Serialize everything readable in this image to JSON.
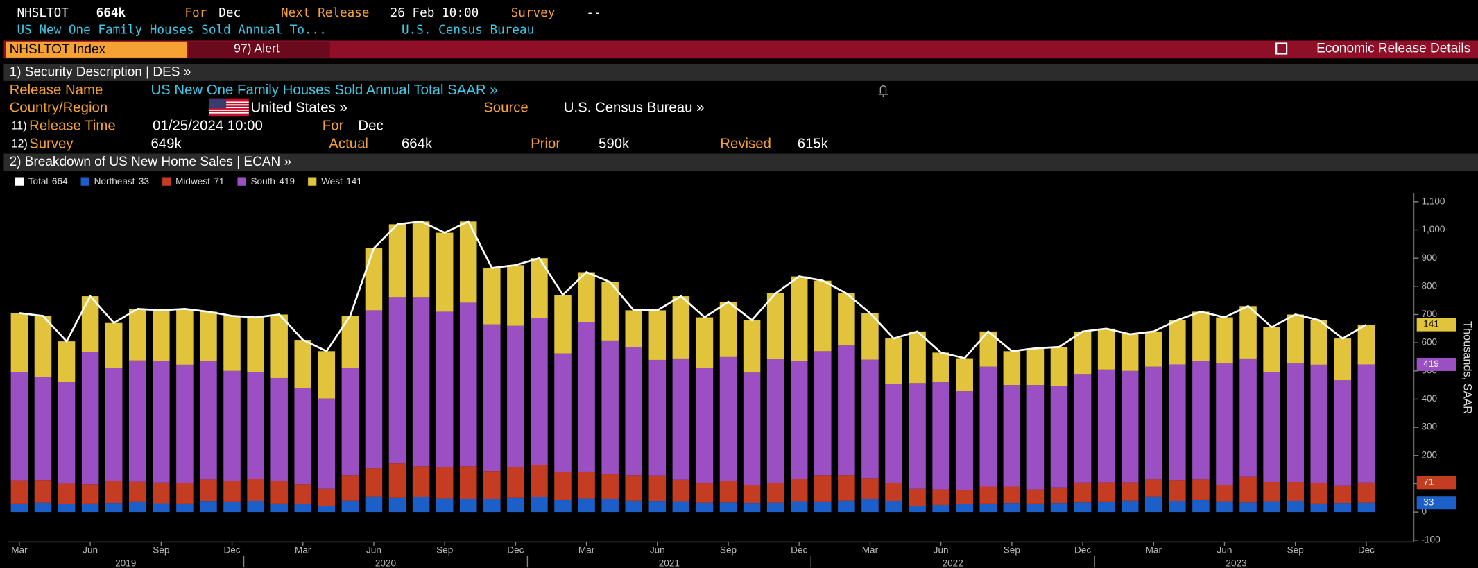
{
  "header": {
    "ticker": "NHSLTOT",
    "value": "664k",
    "for_label": "For",
    "for_value": "Dec",
    "next_release_label": "Next Release",
    "next_release": "26 Feb 10:00",
    "survey_label": "Survey",
    "survey": "--",
    "description": "US New One Family Houses Sold Annual To...",
    "source": "U.S. Census Bureau"
  },
  "toolbar": {
    "index": "NHSLTOT Index",
    "alert": "97) Alert",
    "details": "Economic Release Details"
  },
  "section1": {
    "title": "1) Security Description  | DES  »",
    "release_name_label": "Release Name",
    "release_name": "US New One Family Houses Sold Annual Total SAAR »",
    "country_label": "Country/Region",
    "country": "United States »",
    "source_label": "Source",
    "source": "U.S. Census Bureau »",
    "release_time_num": "11)",
    "release_time_label": "Release Time",
    "release_time": "01/25/2024 10:00",
    "for_label": "For",
    "for_value": "Dec",
    "survey_num": "12)",
    "survey_label": "Survey",
    "survey": "649k",
    "actual_label": "Actual",
    "actual": "664k",
    "prior_label": "Prior",
    "prior": "590k",
    "revised_label": "Revised",
    "revised": "615k"
  },
  "section2": {
    "title": "2) Breakdown of US New Home Sales | ECAN »"
  },
  "chart_data": {
    "type": "bar",
    "stacked": true,
    "y_label": "Thousands, SAAR",
    "categories": [
      "Mar",
      null,
      null,
      "Jun",
      null,
      null,
      "Sep",
      null,
      null,
      "Dec",
      null,
      null,
      "Mar",
      null,
      null,
      "Jun",
      null,
      null,
      "Sep",
      null,
      null,
      "Dec",
      null,
      null,
      "Mar",
      null,
      null,
      "Jun",
      null,
      null,
      "Sep",
      null,
      null,
      "Dec",
      null,
      null,
      "Mar",
      null,
      null,
      "Jun",
      null,
      null,
      "Sep",
      null,
      null,
      "Dec",
      null,
      null,
      "Mar",
      null,
      null,
      "Jun",
      null,
      null,
      "Sep",
      null,
      null,
      "Dec"
    ],
    "years": [
      "2019",
      "2020",
      "2021",
      "2022",
      "2023"
    ],
    "ylim": [
      -100,
      1100
    ],
    "yticks": [
      -100,
      0,
      100,
      200,
      300,
      400,
      500,
      600,
      700,
      800,
      900,
      {
        "value": 1000,
        "label": "1,000"
      },
      {
        "value": 1100,
        "label": "1,100"
      }
    ],
    "series": [
      {
        "name": "Total",
        "type": "line",
        "color": "#ffffff",
        "values": [
          705,
          695,
          605,
          765,
          670,
          720,
          715,
          720,
          710,
          695,
          690,
          700,
          610,
          570,
          695,
          935,
          1020,
          1030,
          990,
          1030,
          865,
          875,
          900,
          770,
          850,
          815,
          715,
          715,
          765,
          690,
          745,
          680,
          775,
          835,
          820,
          775,
          705,
          615,
          640,
          565,
          545,
          640,
          570,
          580,
          585,
          640,
          650,
          630,
          640,
          680,
          710,
          690,
          730,
          655,
          700,
          680,
          615,
          664
        ]
      },
      {
        "name": "Northeast",
        "color": "#1c5fc8",
        "values": [
          30,
          33,
          28,
          30,
          32,
          35,
          31,
          30,
          37,
          35,
          38,
          30,
          28,
          22,
          40,
          55,
          50,
          52,
          48,
          47,
          45,
          50,
          52,
          42,
          48,
          45,
          40,
          37,
          36,
          33,
          34,
          32,
          33,
          36,
          35,
          40,
          45,
          38,
          22,
          25,
          28,
          30,
          32,
          30,
          32,
          34,
          35,
          40,
          55,
          38,
          42,
          36,
          34,
          36,
          38,
          30,
          32,
          33
        ]
      },
      {
        "name": "Midwest",
        "color": "#c43d22",
        "values": [
          82,
          80,
          72,
          68,
          78,
          72,
          73,
          72,
          78,
          75,
          78,
          80,
          70,
          60,
          90,
          100,
          122,
          110,
          112,
          115,
          100,
          110,
          115,
          100,
          95,
          88,
          90,
          92,
          78,
          68,
          75,
          62,
          70,
          80,
          95,
          90,
          75,
          65,
          60,
          55,
          50,
          60,
          58,
          50,
          55,
          70,
          70,
          65,
          60,
          75,
          73,
          60,
          90,
          70,
          68,
          72,
          60,
          71
        ]
      },
      {
        "name": "South",
        "color": "#9a50c2",
        "values": [
          383,
          365,
          360,
          470,
          400,
          430,
          430,
          420,
          420,
          390,
          380,
          365,
          340,
          320,
          380,
          560,
          590,
          600,
          550,
          580,
          520,
          500,
          520,
          420,
          530,
          475,
          455,
          410,
          430,
          410,
          440,
          400,
          440,
          420,
          440,
          460,
          420,
          350,
          375,
          380,
          350,
          425,
          360,
          370,
          360,
          385,
          400,
          395,
          400,
          410,
          420,
          430,
          420,
          390,
          420,
          420,
          375,
          419
        ]
      },
      {
        "name": "West",
        "color": "#e2c33c",
        "values": [
          210,
          217,
          145,
          197,
          160,
          183,
          181,
          198,
          175,
          195,
          194,
          225,
          172,
          168,
          185,
          220,
          258,
          268,
          280,
          288,
          200,
          215,
          213,
          208,
          177,
          207,
          130,
          176,
          221,
          179,
          196,
          186,
          232,
          299,
          250,
          185,
          165,
          162,
          183,
          105,
          117,
          125,
          120,
          130,
          138,
          151,
          145,
          130,
          125,
          157,
          175,
          164,
          186,
          159,
          174,
          158,
          148,
          141
        ]
      }
    ]
  }
}
